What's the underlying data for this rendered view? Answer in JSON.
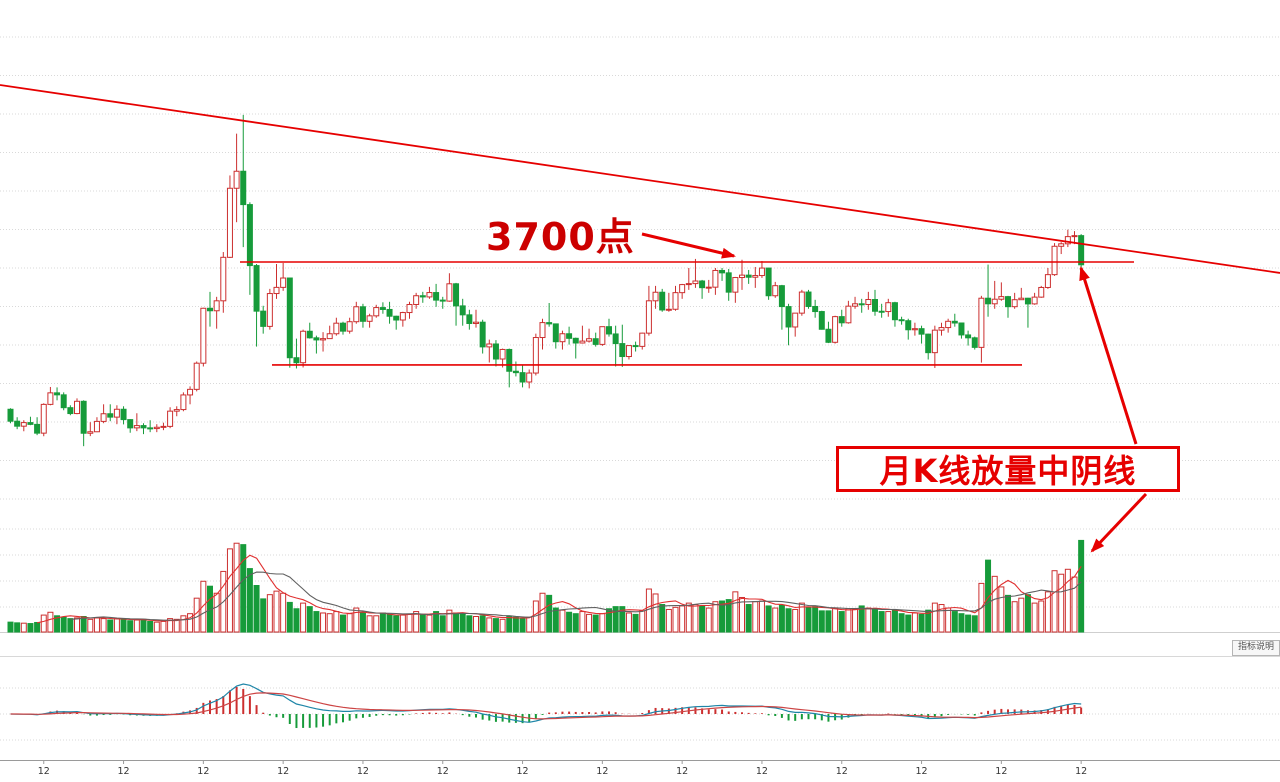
{
  "annotations": {
    "level_label": "3700点",
    "note_label": "月K线放量中阴线",
    "indicator_button": "指标说明"
  },
  "colors": {
    "up": "#cc2f2f",
    "down": "#169b3a",
    "annotation": "#e60000",
    "annotation_text": "#cc0000",
    "grid": "#d9d9d9",
    "axis_line": "#9a9a9a",
    "axis_text": "#333333",
    "vol_ma_fast": "#e03030",
    "vol_ma_slow": "#606060",
    "macd_dif": "#1f86a8",
    "macd_dea": "#cc4444"
  },
  "chart_data": {
    "type": "candlestick",
    "frequency": "monthly",
    "series_format": [
      "open",
      "high",
      "low",
      "close",
      "volume"
    ],
    "x_axis": {
      "tick_label": "12",
      "december_indices": [
        5,
        17,
        29,
        41,
        53,
        65,
        77,
        89,
        101,
        113,
        125,
        137,
        149,
        161
      ]
    },
    "price_levels": {
      "resistance_value": 3700,
      "support_value": 2665
    },
    "trend_line": {
      "start_value": 5479,
      "end_value": 3590
    },
    "indicators": {
      "volume_ma_periods": [
        5,
        10
      ],
      "macd_params": [
        12,
        26,
        9
      ]
    },
    "candles": [
      [
        2220,
        2230,
        2080,
        2100,
        1400
      ],
      [
        2100,
        2140,
        2020,
        2050,
        1300
      ],
      [
        2050,
        2110,
        1999,
        2086,
        1250
      ],
      [
        2086,
        2145,
        2060,
        2068,
        1200
      ],
      [
        2068,
        2140,
        1960,
        1980,
        1350
      ],
      [
        1980,
        2280,
        1949,
        2269,
        2400
      ],
      [
        2269,
        2444,
        2260,
        2385,
        2800
      ],
      [
        2385,
        2440,
        2310,
        2365,
        2300
      ],
      [
        2365,
        2390,
        2210,
        2236,
        2100
      ],
      [
        2236,
        2260,
        2160,
        2177,
        1900
      ],
      [
        2177,
        2330,
        2170,
        2300,
        2000
      ],
      [
        2300,
        2310,
        1849,
        1979,
        2200
      ],
      [
        1979,
        2090,
        1950,
        1994,
        1800
      ],
      [
        1994,
        2140,
        1990,
        2098,
        2000
      ],
      [
        2098,
        2270,
        2080,
        2175,
        1900
      ],
      [
        2175,
        2270,
        2100,
        2141,
        1700
      ],
      [
        2141,
        2260,
        2070,
        2220,
        1900
      ],
      [
        2220,
        2250,
        2068,
        2116,
        1800
      ],
      [
        2116,
        2120,
        1984,
        2033,
        1600
      ],
      [
        2033,
        2180,
        2000,
        2056,
        1700
      ],
      [
        2056,
        2080,
        1970,
        2033,
        1800
      ],
      [
        2033,
        2110,
        1990,
        2026,
        1500
      ],
      [
        2026,
        2070,
        1990,
        2039,
        1400
      ],
      [
        2039,
        2085,
        2010,
        2048,
        1500
      ],
      [
        2048,
        2240,
        2030,
        2201,
        1900
      ],
      [
        2201,
        2250,
        2150,
        2217,
        1800
      ],
      [
        2217,
        2390,
        2200,
        2364,
        2300
      ],
      [
        2364,
        2450,
        2270,
        2420,
        2600
      ],
      [
        2420,
        2700,
        2400,
        2683,
        4800
      ],
      [
        2683,
        3240,
        2650,
        3235,
        7200
      ],
      [
        3235,
        3400,
        3050,
        3210,
        6500
      ],
      [
        3210,
        3350,
        3030,
        3310,
        5500
      ],
      [
        3310,
        3800,
        3190,
        3747,
        8600
      ],
      [
        3747,
        4570,
        3740,
        4441,
        11800
      ],
      [
        4441,
        4990,
        4100,
        4612,
        12600
      ],
      [
        4612,
        5178,
        3850,
        4277,
        12400
      ],
      [
        4277,
        4300,
        3370,
        3664,
        9000
      ],
      [
        3664,
        3680,
        2850,
        3206,
        6600
      ],
      [
        3206,
        3260,
        2980,
        3053,
        4700
      ],
      [
        3053,
        3430,
        3020,
        3383,
        5300
      ],
      [
        3383,
        3680,
        3330,
        3445,
        5800
      ],
      [
        3445,
        3690,
        3410,
        3539,
        5500
      ],
      [
        3539,
        3540,
        2638,
        2738,
        4200
      ],
      [
        2738,
        2930,
        2630,
        2688,
        3300
      ],
      [
        2688,
        3020,
        2640,
        3004,
        4100
      ],
      [
        3004,
        3090,
        2930,
        2938,
        3600
      ],
      [
        2938,
        2960,
        2780,
        2917,
        2900
      ],
      [
        2917,
        2995,
        2800,
        2930,
        2700
      ],
      [
        2930,
        3060,
        2930,
        2979,
        2600
      ],
      [
        2979,
        3140,
        2960,
        3085,
        2900
      ],
      [
        3085,
        3100,
        2970,
        3005,
        2400
      ],
      [
        3005,
        3140,
        2980,
        3100,
        2600
      ],
      [
        3100,
        3300,
        3080,
        3250,
        3400
      ],
      [
        3250,
        3280,
        3040,
        3104,
        2800
      ],
      [
        3104,
        3180,
        3040,
        3159,
        2300
      ],
      [
        3159,
        3270,
        3140,
        3242,
        2300
      ],
      [
        3242,
        3295,
        3180,
        3223,
        2700
      ],
      [
        3223,
        3300,
        3080,
        3155,
        2500
      ],
      [
        3155,
        3160,
        3020,
        3117,
        2300
      ],
      [
        3117,
        3200,
        3050,
        3192,
        2400
      ],
      [
        3192,
        3300,
        3130,
        3273,
        2500
      ],
      [
        3273,
        3390,
        3230,
        3361,
        2900
      ],
      [
        3361,
        3400,
        3290,
        3349,
        2500
      ],
      [
        3349,
        3450,
        3330,
        3393,
        2400
      ],
      [
        3393,
        3480,
        3250,
        3317,
        2900
      ],
      [
        3317,
        3350,
        3230,
        3307,
        2300
      ],
      [
        3307,
        3587,
        3300,
        3481,
        3100
      ],
      [
        3481,
        3490,
        3060,
        3259,
        2700
      ],
      [
        3259,
        3330,
        3060,
        3169,
        2700
      ],
      [
        3169,
        3220,
        3020,
        3082,
        2300
      ],
      [
        3082,
        3220,
        3040,
        3095,
        2200
      ],
      [
        3095,
        3120,
        2780,
        2847,
        2300
      ],
      [
        2847,
        2920,
        2690,
        2876,
        2000
      ],
      [
        2876,
        2915,
        2650,
        2725,
        1900
      ],
      [
        2725,
        2830,
        2640,
        2821,
        1800
      ],
      [
        2821,
        2830,
        2440,
        2602,
        2200
      ],
      [
        2602,
        2700,
        2550,
        2588,
        2100
      ],
      [
        2588,
        2670,
        2440,
        2494,
        1900
      ],
      [
        2494,
        2620,
        2430,
        2584,
        2100
      ],
      [
        2584,
        2980,
        2560,
        2941,
        4400
      ],
      [
        2941,
        3130,
        2820,
        3091,
        5500
      ],
      [
        3091,
        3288,
        3050,
        3078,
        5200
      ],
      [
        3078,
        3080,
        2830,
        2899,
        3400
      ],
      [
        2899,
        3010,
        2820,
        2979,
        3100
      ],
      [
        2979,
        3050,
        2870,
        2933,
        2800
      ],
      [
        2933,
        2940,
        2730,
        2886,
        2600
      ],
      [
        2886,
        3060,
        2880,
        2905,
        2900
      ],
      [
        2905,
        3030,
        2890,
        2929,
        2500
      ],
      [
        2929,
        2990,
        2850,
        2872,
        2400
      ],
      [
        2872,
        3050,
        2857,
        3050,
        2600
      ],
      [
        3050,
        3130,
        2950,
        2977,
        3300
      ],
      [
        2977,
        3060,
        2650,
        2880,
        3600
      ],
      [
        2880,
        3070,
        2646,
        2750,
        3600
      ],
      [
        2750,
        2860,
        2720,
        2860,
        2700
      ],
      [
        2860,
        2900,
        2800,
        2852,
        2500
      ],
      [
        2852,
        2990,
        2820,
        2985,
        3000
      ],
      [
        2985,
        3460,
        2960,
        3310,
        6100
      ],
      [
        3310,
        3460,
        3230,
        3396,
        5400
      ],
      [
        3396,
        3430,
        3200,
        3218,
        3900
      ],
      [
        3218,
        3390,
        3200,
        3225,
        3200
      ],
      [
        3225,
        3460,
        3210,
        3392,
        3500
      ],
      [
        3392,
        3480,
        3330,
        3473,
        3700
      ],
      [
        3473,
        3640,
        3420,
        3483,
        4100
      ],
      [
        3483,
        3731,
        3440,
        3509,
        3900
      ],
      [
        3509,
        3520,
        3330,
        3442,
        3700
      ],
      [
        3442,
        3520,
        3390,
        3447,
        3400
      ],
      [
        3447,
        3640,
        3370,
        3615,
        4300
      ],
      [
        3615,
        3640,
        3510,
        3591,
        4400
      ],
      [
        3591,
        3630,
        3310,
        3397,
        4600
      ],
      [
        3397,
        3550,
        3290,
        3544,
        5700
      ],
      [
        3544,
        3723,
        3420,
        3568,
        4900
      ],
      [
        3568,
        3620,
        3480,
        3547,
        3900
      ],
      [
        3547,
        3650,
        3440,
        3564,
        4300
      ],
      [
        3564,
        3710,
        3540,
        3639,
        4400
      ],
      [
        3639,
        3640,
        3320,
        3361,
        3700
      ],
      [
        3361,
        3500,
        3340,
        3462,
        3400
      ],
      [
        3462,
        3470,
        3020,
        3252,
        3800
      ],
      [
        3252,
        3280,
        2863,
        3047,
        3300
      ],
      [
        3047,
        3180,
        2950,
        3186,
        3200
      ],
      [
        3186,
        3420,
        3160,
        3398,
        4100
      ],
      [
        3398,
        3420,
        3230,
        3253,
        3500
      ],
      [
        3253,
        3320,
        3140,
        3202,
        3600
      ],
      [
        3202,
        3210,
        3020,
        3024,
        3000
      ],
      [
        3024,
        3100,
        2885,
        2893,
        3000
      ],
      [
        2893,
        3160,
        2880,
        3151,
        3400
      ],
      [
        3151,
        3220,
        3050,
        3089,
        2900
      ],
      [
        3089,
        3310,
        3080,
        3256,
        3300
      ],
      [
        3256,
        3350,
        3230,
        3280,
        3200
      ],
      [
        3280,
        3330,
        3190,
        3273,
        3700
      ],
      [
        3273,
        3400,
        3220,
        3323,
        3400
      ],
      [
        3323,
        3420,
        3160,
        3205,
        3300
      ],
      [
        3205,
        3280,
        3140,
        3202,
        2900
      ],
      [
        3202,
        3330,
        3150,
        3291,
        2900
      ],
      [
        3291,
        3300,
        3050,
        3120,
        3100
      ],
      [
        3120,
        3150,
        3070,
        3110,
        2600
      ],
      [
        3110,
        3130,
        2920,
        3019,
        2400
      ],
      [
        3019,
        3090,
        2960,
        3030,
        2700
      ],
      [
        3030,
        3060,
        2880,
        2975,
        2500
      ],
      [
        2975,
        2980,
        2720,
        2789,
        3100
      ],
      [
        2789,
        3060,
        2635,
        3015,
        4100
      ],
      [
        3015,
        3090,
        2960,
        3041,
        3900
      ],
      [
        3041,
        3130,
        2990,
        3104,
        3400
      ],
      [
        3104,
        3180,
        3050,
        3087,
        2900
      ],
      [
        3087,
        3090,
        2930,
        2967,
        2600
      ],
      [
        2967,
        3010,
        2860,
        2938,
        2400
      ],
      [
        2938,
        2950,
        2820,
        2842,
        2300
      ],
      [
        2842,
        3360,
        2689,
        3336,
        6900
      ],
      [
        3336,
        3674,
        3150,
        3280,
        10200
      ],
      [
        3280,
        3510,
        3230,
        3326,
        7900
      ],
      [
        3326,
        3495,
        3310,
        3352,
        6400
      ],
      [
        3352,
        3360,
        3140,
        3251,
        5200
      ],
      [
        3251,
        3390,
        3230,
        3321,
        4300
      ],
      [
        3321,
        3440,
        3320,
        3336,
        4800
      ],
      [
        3336,
        3340,
        3040,
        3279,
        5300
      ],
      [
        3279,
        3390,
        3270,
        3347,
        4100
      ],
      [
        3347,
        3460,
        3340,
        3444,
        4400
      ],
      [
        3444,
        3640,
        3430,
        3573,
        5700
      ],
      [
        3573,
        3890,
        3560,
        3858,
        8700
      ],
      [
        3858,
        3899,
        3780,
        3883,
        8200
      ],
      [
        3883,
        4025,
        3850,
        3955,
        8900
      ],
      [
        3955,
        4010,
        3880,
        3965,
        7800
      ],
      [
        3965,
        3980,
        3640,
        3672,
        13000
      ]
    ]
  }
}
